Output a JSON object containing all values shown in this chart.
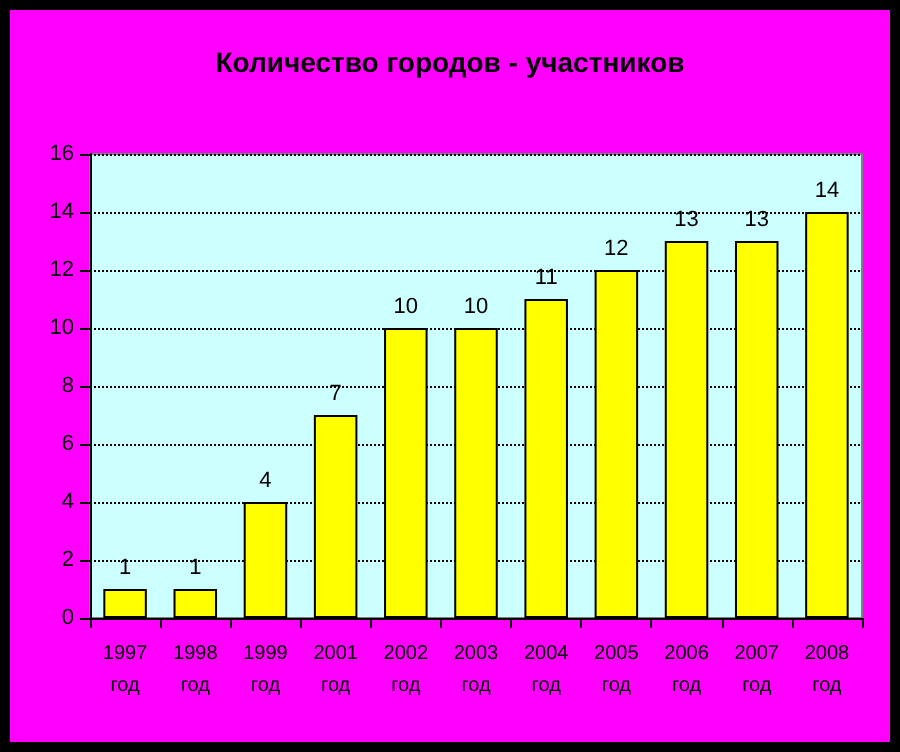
{
  "chart_data": {
    "type": "bar",
    "title": "Количество городов - участников",
    "categories": [
      "1997\nгод",
      "1998\nгод",
      "1999\nгод",
      "2001\nгод",
      "2002\nгод",
      "2003\nгод",
      "2004\nгод",
      "2005\nгод",
      "2006\nгод",
      "2007\nгод",
      "2008\nгод"
    ],
    "values": [
      1,
      1,
      4,
      7,
      10,
      10,
      11,
      12,
      13,
      13,
      14
    ],
    "color": "#ffff00",
    "ylim": [
      0,
      16
    ],
    "yticks": [
      0,
      2,
      4,
      6,
      8,
      10,
      12,
      14,
      16
    ],
    "grid": "y",
    "data_labels": true
  }
}
